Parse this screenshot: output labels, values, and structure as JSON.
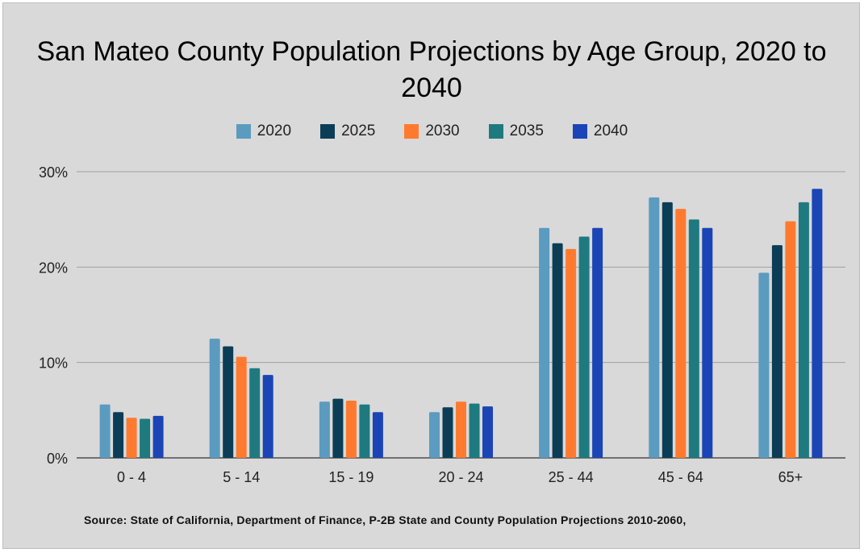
{
  "chart_data": {
    "type": "bar",
    "title": "San Mateo County Population Projections by Age Group, 2020 to 2040",
    "xlabel": "",
    "ylabel": "",
    "categories": [
      "0 - 4",
      "5 - 14",
      "15 - 19",
      "20 - 24",
      "25 - 44",
      "45 - 64",
      "65+"
    ],
    "series": [
      {
        "name": "2020",
        "color": "#5b9bbf",
        "values": [
          5.6,
          12.5,
          5.9,
          4.8,
          24.1,
          27.3,
          19.4
        ]
      },
      {
        "name": "2025",
        "color": "#0b3d57",
        "values": [
          4.8,
          11.7,
          6.2,
          5.3,
          22.5,
          26.8,
          22.3
        ]
      },
      {
        "name": "2030",
        "color": "#ff7a2f",
        "values": [
          4.2,
          10.6,
          6.0,
          5.9,
          21.9,
          26.1,
          24.8
        ]
      },
      {
        "name": "2035",
        "color": "#1f7a80",
        "values": [
          4.1,
          9.4,
          5.6,
          5.7,
          23.2,
          25.0,
          26.8
        ]
      },
      {
        "name": "2040",
        "color": "#1b44b6",
        "values": [
          4.4,
          8.7,
          4.8,
          5.4,
          24.1,
          24.1,
          28.2
        ]
      }
    ],
    "ylim": [
      0,
      30
    ],
    "yticks": [
      "0%",
      "10%",
      "20%",
      "30%"
    ],
    "grid": true,
    "legend_position": "top-center"
  },
  "source_note": "Source: State of California, Department of Finance, P-2B State and County Population Projections 2010-2060,"
}
